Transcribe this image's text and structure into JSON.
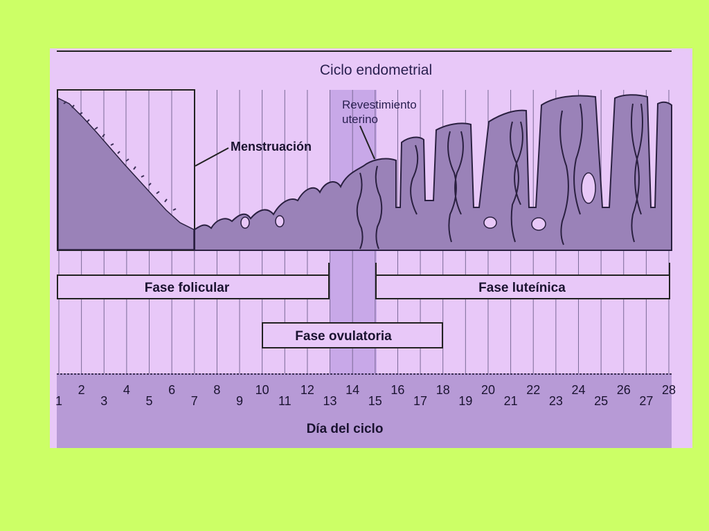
{
  "title": "Ciclo endometrial",
  "labels": {
    "menstruation": "Menstruación",
    "lining_line1": "Revestimiento",
    "lining_line2": "uterino"
  },
  "phases": {
    "follicular": "Fase folicular",
    "luteal": "Fase luteínica",
    "ovulatory": "Fase ovulatoria"
  },
  "x_axis_label": "Día del ciclo",
  "days": [
    "1",
    "2",
    "3",
    "4",
    "5",
    "6",
    "7",
    "8",
    "9",
    "10",
    "11",
    "12",
    "13",
    "14",
    "15",
    "16",
    "17",
    "18",
    "19",
    "20",
    "21",
    "22",
    "23",
    "24",
    "25",
    "26",
    "27",
    "28"
  ],
  "colors": {
    "background": "#CCFF66",
    "panel": "#E8C8F8",
    "tissue": "#9A82B8",
    "ovulation_band": "#C8A8E8",
    "axis_band": "#B79AD6"
  }
}
